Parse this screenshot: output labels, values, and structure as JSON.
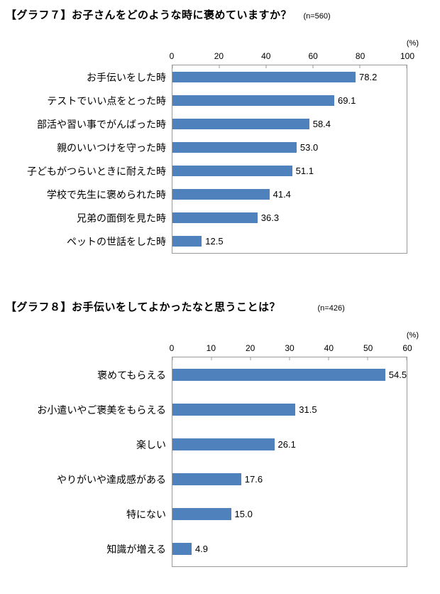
{
  "chart_data": [
    {
      "type": "bar",
      "orientation": "horizontal",
      "title": "【グラフ７】お子さんをどのような時に褒めていますか？",
      "sample_label": "(n=560)",
      "axis_unit_label": "(%)",
      "xlim": [
        0,
        100
      ],
      "xticks": [
        0,
        20,
        40,
        60,
        80,
        100
      ],
      "bar_color": "#4f81bd",
      "grid": false,
      "legend": false,
      "categories": [
        "お手伝いをした時",
        "テストでいい点をとった時",
        "部活や習い事でがんばった時",
        "親のいいつけを守った時",
        "子どもがつらいときに耐えた時",
        "学校で先生に褒められた時",
        "兄弟の面倒を見た時",
        "ペットの世話をした時"
      ],
      "values": [
        78.2,
        69.1,
        58.4,
        53.0,
        51.1,
        41.4,
        36.3,
        12.5
      ]
    },
    {
      "type": "bar",
      "orientation": "horizontal",
      "title": "【グラフ８】お手伝いをしてよかったなと思うことは？",
      "sample_label": "(n=426)",
      "axis_unit_label": "(%)",
      "xlim": [
        0,
        60
      ],
      "xticks": [
        0,
        10,
        20,
        30,
        40,
        50,
        60
      ],
      "bar_color": "#4f81bd",
      "grid": false,
      "legend": false,
      "categories": [
        "褒めてもらえる",
        "お小遣いやご褒美をもらえる",
        "楽しい",
        "やりがいや達成感がある",
        "特にない",
        "知識が増える"
      ],
      "values": [
        54.5,
        31.5,
        26.1,
        17.6,
        15.0,
        4.9
      ]
    }
  ]
}
